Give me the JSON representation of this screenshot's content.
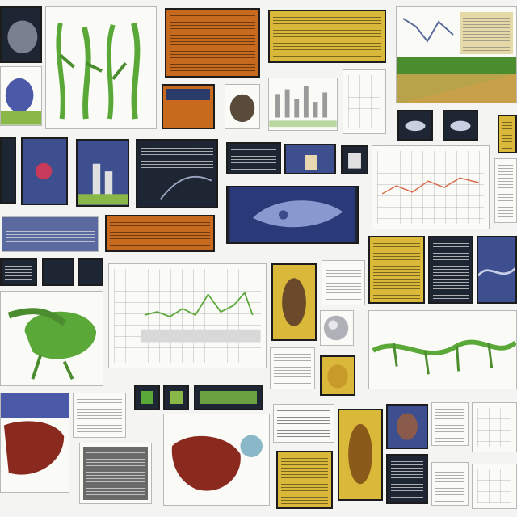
{
  "collage": {
    "description_free": true,
    "tile_count": 48,
    "palette": {
      "background": "#f4f4f2",
      "frame": "#1c1c1c",
      "orange": "#c86a1e",
      "yellow": "#d9b83a",
      "blue": "#3d4f8f",
      "green": "#5aa838",
      "maroon": "#8a2a1e",
      "dark": "#1f2633"
    },
    "icons": [
      "plant-stem-icon",
      "leaf-icon",
      "bird-icon",
      "fish-icon",
      "line-chart-icon",
      "anatomy-icon"
    ]
  }
}
